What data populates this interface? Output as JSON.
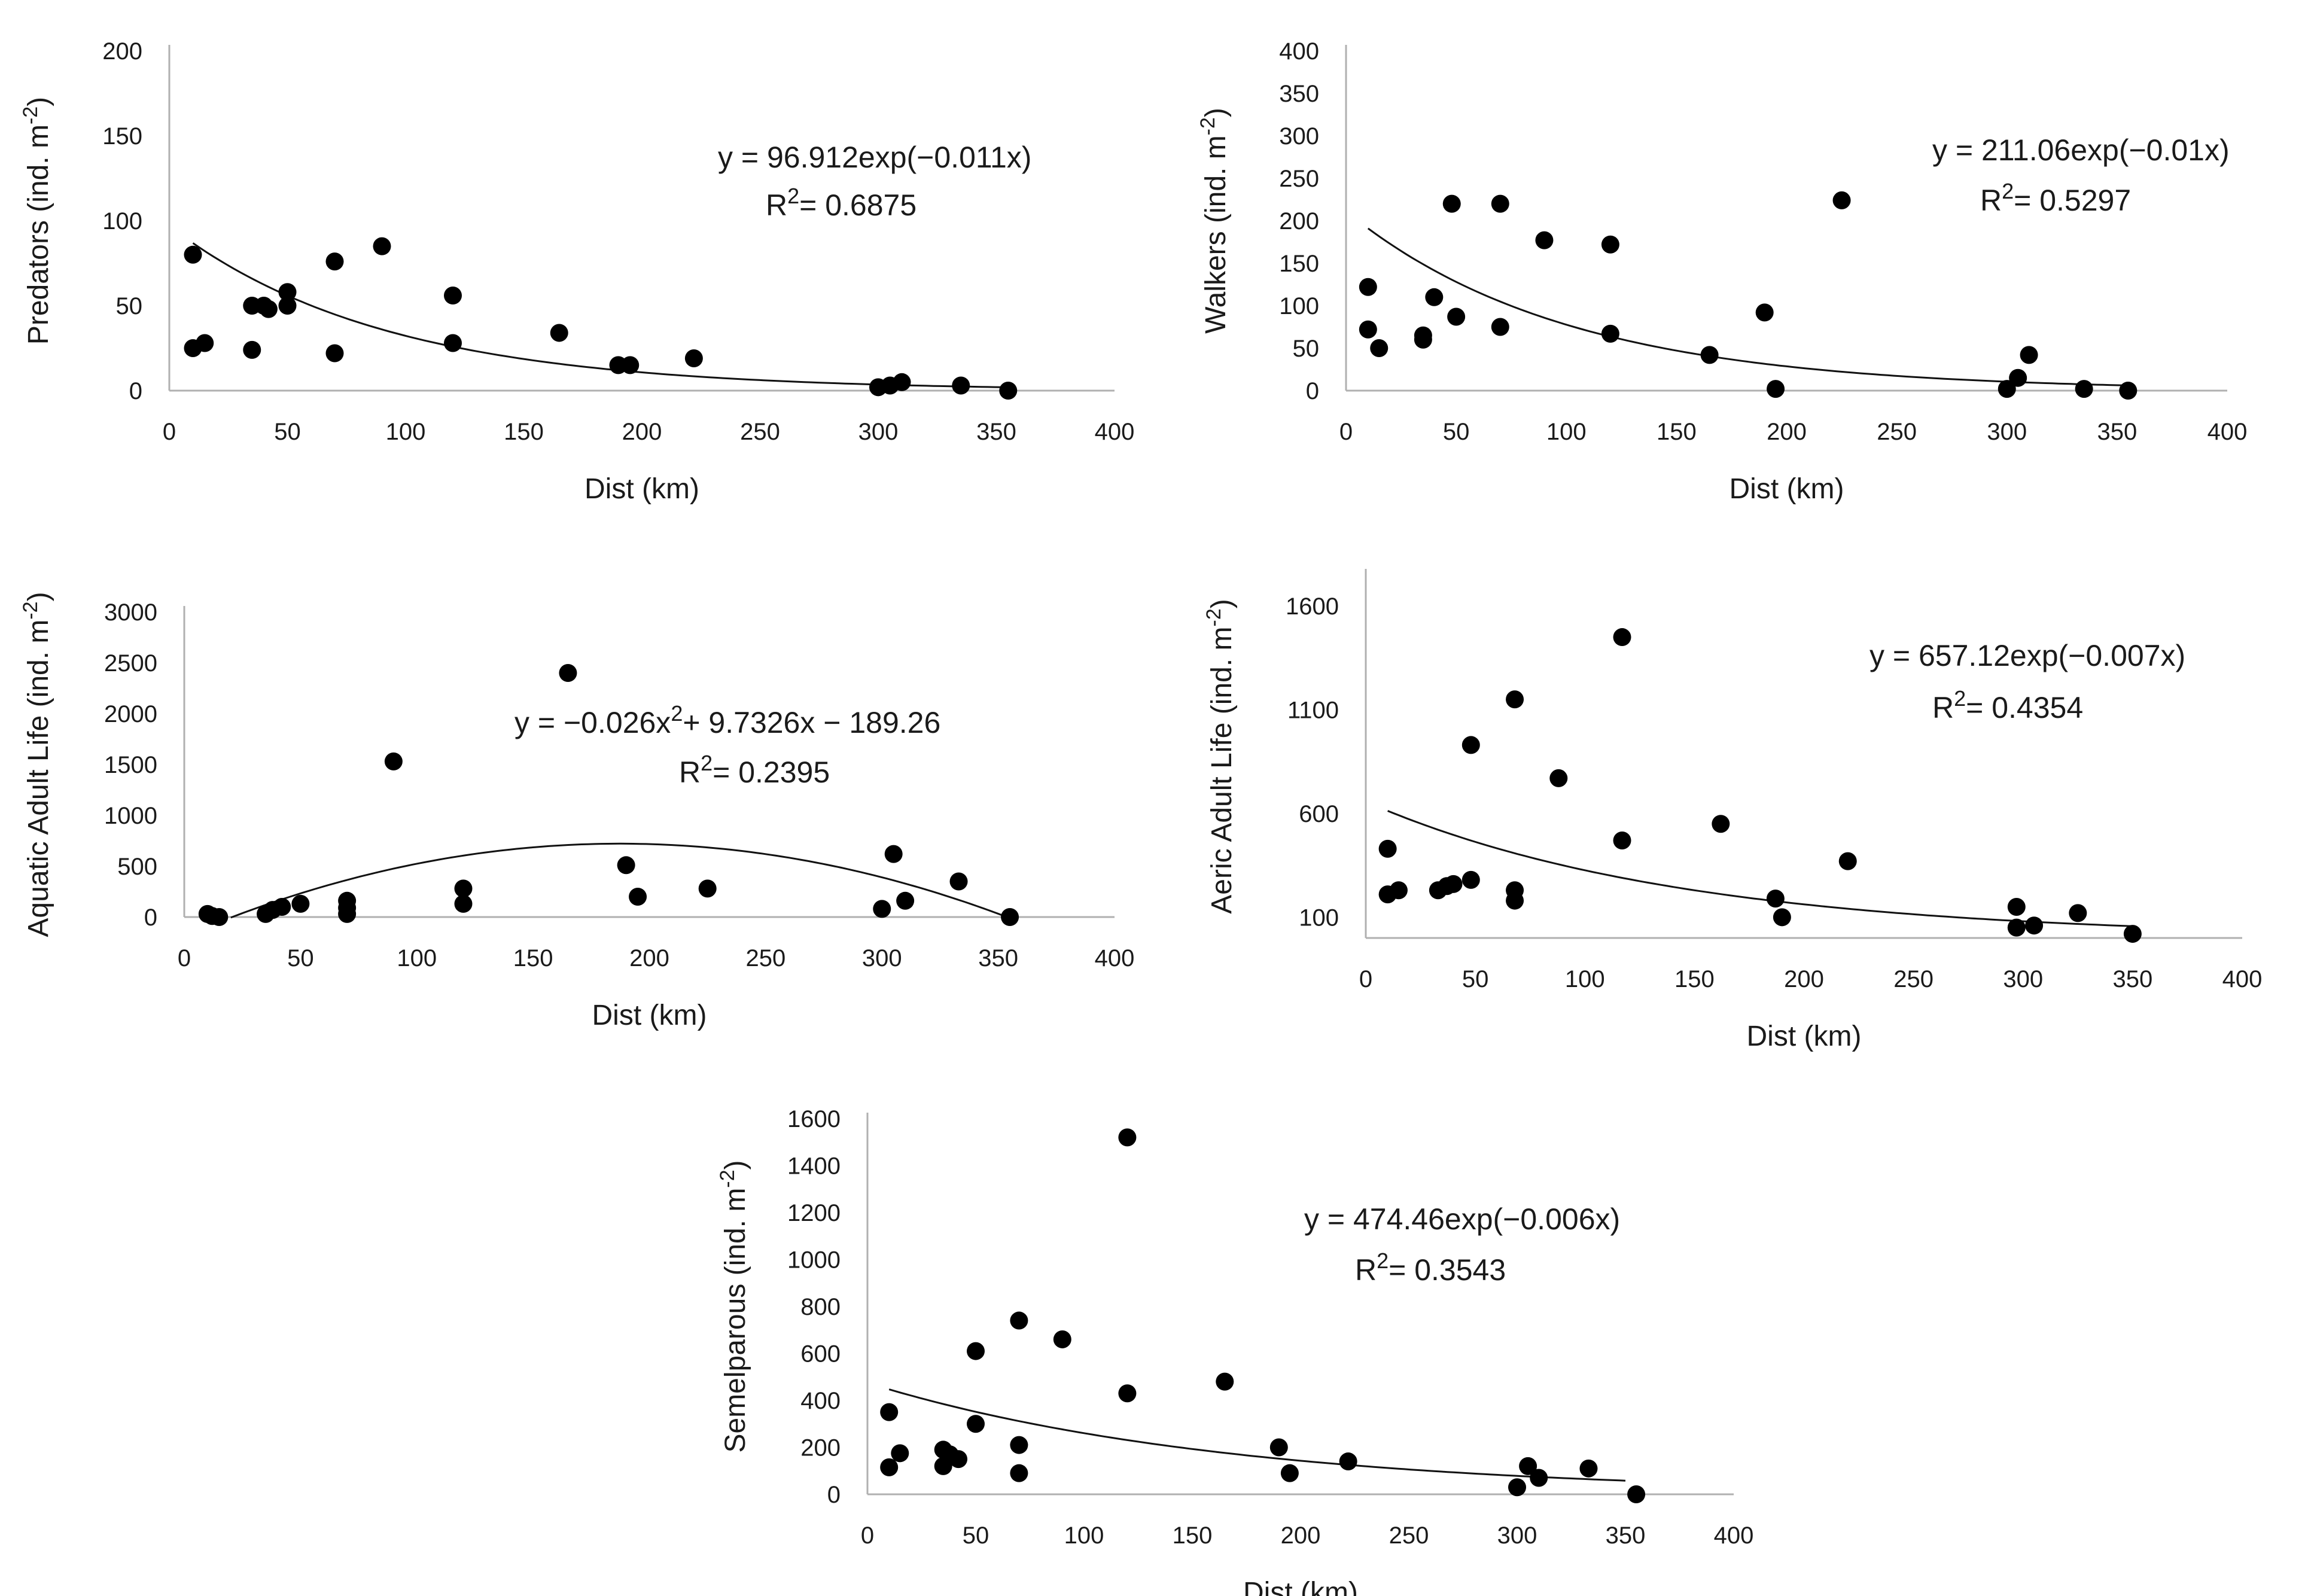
{
  "chart_data": [
    {
      "type": "scatter",
      "id": "predators",
      "xlabel": "Dist (km)",
      "ylabel": "Predators (ind. m",
      "ylabel_sup": "-2",
      "ylabel_end": ")",
      "xlim": [
        0,
        400
      ],
      "ylim": [
        0,
        200
      ],
      "xticks": [
        "0",
        "50",
        "100",
        "150",
        "200",
        "250",
        "300",
        "350",
        "400"
      ],
      "yticks": [
        "0",
        "50",
        "100",
        "150",
        "200"
      ],
      "trend": {
        "kind": "exp",
        "a": 96.912,
        "b": -0.011,
        "from": 10,
        "to": 355
      },
      "equation": "y = 96.912exp(−0.011x)",
      "r2_prefix": "R",
      "r2_sup": "2",
      "r2_value": "= 0.6875",
      "points": [
        [
          10,
          80
        ],
        [
          10,
          25
        ],
        [
          15,
          28
        ],
        [
          35,
          50
        ],
        [
          35,
          24
        ],
        [
          40,
          50
        ],
        [
          42,
          48
        ],
        [
          50,
          58
        ],
        [
          50,
          50
        ],
        [
          70,
          76
        ],
        [
          70,
          22
        ],
        [
          90,
          85
        ],
        [
          120,
          56
        ],
        [
          120,
          28
        ],
        [
          165,
          34
        ],
        [
          190,
          15
        ],
        [
          195,
          15
        ],
        [
          222,
          19
        ],
        [
          300,
          2
        ],
        [
          305,
          3
        ],
        [
          310,
          5
        ],
        [
          335,
          3
        ],
        [
          355,
          0
        ]
      ]
    },
    {
      "type": "scatter",
      "id": "walkers",
      "xlabel": "Dist (km)",
      "ylabel": "Walkers (ind. m",
      "ylabel_sup": "-2",
      "ylabel_end": ")",
      "xlim": [
        0,
        400
      ],
      "ylim": [
        0,
        400
      ],
      "xticks": [
        "0",
        "50",
        "100",
        "150",
        "200",
        "250",
        "300",
        "350",
        "400"
      ],
      "yticks": [
        "0",
        "50",
        "100",
        "150",
        "200",
        "250",
        "300",
        "350",
        "400"
      ],
      "trend": {
        "kind": "exp",
        "a": 211.06,
        "b": -0.01,
        "from": 10,
        "to": 355
      },
      "equation": "y = 211.06exp(−0.01x)",
      "r2_prefix": "R",
      "r2_sup": "2",
      "r2_value": "= 0.5297",
      "points": [
        [
          10,
          122
        ],
        [
          10,
          72
        ],
        [
          15,
          50
        ],
        [
          35,
          65
        ],
        [
          35,
          60
        ],
        [
          40,
          110
        ],
        [
          48,
          220
        ],
        [
          50,
          87
        ],
        [
          70,
          220
        ],
        [
          70,
          75
        ],
        [
          90,
          177
        ],
        [
          120,
          172
        ],
        [
          120,
          67
        ],
        [
          165,
          42
        ],
        [
          190,
          92
        ],
        [
          195,
          2
        ],
        [
          225,
          224
        ],
        [
          300,
          2
        ],
        [
          305,
          15
        ],
        [
          310,
          42
        ],
        [
          335,
          2
        ],
        [
          355,
          0
        ]
      ]
    },
    {
      "type": "scatter",
      "id": "aquatic-adult-life",
      "xlabel": "Dist (km)",
      "ylabel": "Aquatic Adult Life (ind. m",
      "ylabel_sup": "-2",
      "ylabel_end": ")",
      "xlim": [
        0,
        400
      ],
      "ylim": [
        0,
        3000
      ],
      "xticks": [
        "0",
        "50",
        "100",
        "150",
        "200",
        "250",
        "300",
        "350",
        "400"
      ],
      "yticks": [
        "0",
        "500",
        "1000",
        "1500",
        "2000",
        "2500",
        "3000"
      ],
      "trend": {
        "kind": "poly2",
        "a": -0.026,
        "b": 9.7326,
        "c": -189.26,
        "from": 20,
        "to": 355
      },
      "equation": "y = −0.026x",
      "equation_sup": "2",
      "equation_end": "+ 9.7326x − 189.26",
      "r2_prefix": "R",
      "r2_sup": "2",
      "r2_value": "= 0.2395",
      "points": [
        [
          10,
          30
        ],
        [
          12,
          10
        ],
        [
          15,
          0
        ],
        [
          35,
          30
        ],
        [
          38,
          70
        ],
        [
          42,
          100
        ],
        [
          50,
          130
        ],
        [
          70,
          160
        ],
        [
          70,
          90
        ],
        [
          70,
          30
        ],
        [
          90,
          1530
        ],
        [
          120,
          280
        ],
        [
          120,
          130
        ],
        [
          165,
          2400
        ],
        [
          190,
          510
        ],
        [
          195,
          200
        ],
        [
          225,
          280
        ],
        [
          300,
          80
        ],
        [
          305,
          620
        ],
        [
          310,
          160
        ],
        [
          333,
          350
        ],
        [
          355,
          0
        ]
      ]
    },
    {
      "type": "scatter",
      "id": "aeric-adult-life",
      "xlabel": "Dist (km)",
      "ylabel": "Aeric Adult Life (ind. m",
      "ylabel_sup": "-2",
      "ylabel_end": ")",
      "xlim": [
        0,
        400
      ],
      "ylim": [
        0,
        1750
      ],
      "xticks": [
        "0",
        "50",
        "100",
        "150",
        "200",
        "250",
        "300",
        "350",
        "400"
      ],
      "ytick_values": [
        100,
        600,
        1100,
        1600
      ],
      "yticks": [
        "100",
        "600",
        "1100",
        "1600"
      ],
      "trend": {
        "kind": "exp",
        "a": 657.12,
        "b": -0.007,
        "from": 10,
        "to": 350
      },
      "equation": "y = 657.12exp(−0.007x)",
      "r2_prefix": "R",
      "r2_sup": "2",
      "r2_value": "= 0.4354",
      "points": [
        [
          10,
          430
        ],
        [
          10,
          210
        ],
        [
          15,
          230
        ],
        [
          33,
          230
        ],
        [
          37,
          250
        ],
        [
          40,
          260
        ],
        [
          48,
          930
        ],
        [
          48,
          280
        ],
        [
          68,
          1150
        ],
        [
          68,
          230
        ],
        [
          68,
          180
        ],
        [
          88,
          770
        ],
        [
          117,
          1450
        ],
        [
          117,
          470
        ],
        [
          162,
          550
        ],
        [
          187,
          190
        ],
        [
          190,
          100
        ],
        [
          220,
          370
        ],
        [
          297,
          50
        ],
        [
          297,
          150
        ],
        [
          305,
          60
        ],
        [
          325,
          120
        ],
        [
          350,
          20
        ]
      ]
    },
    {
      "type": "scatter",
      "id": "semelparous",
      "xlabel": "Dist (km)",
      "ylabel": "Semelparous (ind. m",
      "ylabel_sup": "-2",
      "ylabel_end": ")",
      "xlim": [
        0,
        400
      ],
      "ylim": [
        0,
        1600
      ],
      "xticks": [
        "0",
        "50",
        "100",
        "150",
        "200",
        "250",
        "300",
        "350",
        "400"
      ],
      "yticks": [
        "0",
        "200",
        "400",
        "600",
        "800",
        "1000",
        "1200",
        "1400",
        "1600"
      ],
      "trend": {
        "kind": "exp",
        "a": 474.46,
        "b": -0.006,
        "from": 10,
        "to": 350
      },
      "equation": "y = 474.46exp(−0.006x)",
      "r2_prefix": "R",
      "r2_sup": "2",
      "r2_value": "= 0.3543",
      "points": [
        [
          10,
          350
        ],
        [
          10,
          115
        ],
        [
          15,
          175
        ],
        [
          35,
          190
        ],
        [
          35,
          120
        ],
        [
          38,
          170
        ],
        [
          42,
          150
        ],
        [
          50,
          610
        ],
        [
          50,
          300
        ],
        [
          70,
          740
        ],
        [
          70,
          210
        ],
        [
          70,
          90
        ],
        [
          90,
          660
        ],
        [
          120,
          1520
        ],
        [
          120,
          430
        ],
        [
          165,
          480
        ],
        [
          190,
          200
        ],
        [
          195,
          90
        ],
        [
          222,
          140
        ],
        [
          300,
          30
        ],
        [
          305,
          120
        ],
        [
          310,
          70
        ],
        [
          333,
          110
        ],
        [
          355,
          0
        ]
      ]
    }
  ]
}
